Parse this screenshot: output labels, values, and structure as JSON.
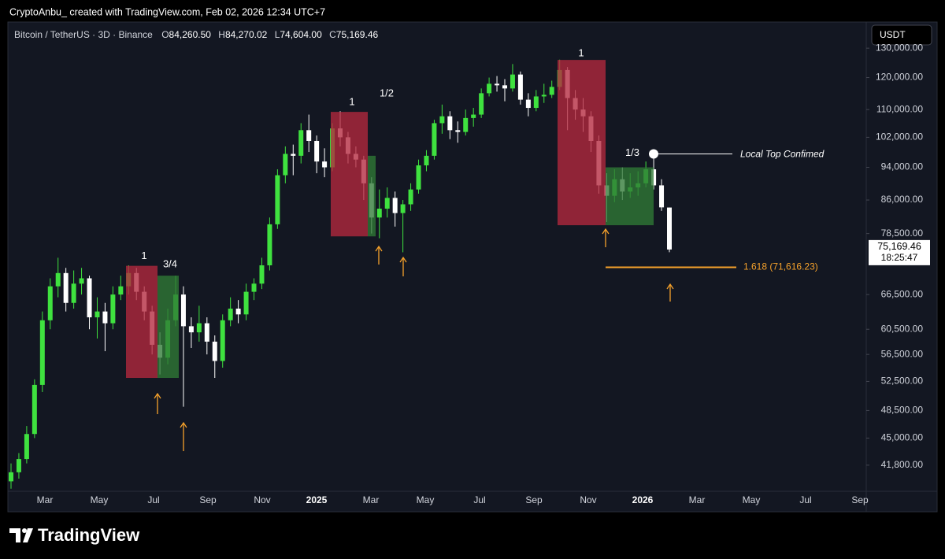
{
  "watermark": "CryptoAnbu_ created with TradingView.com, Feb 02, 2026 12:34 UTC+7",
  "currency_button": "USDT",
  "brand": "TradingView",
  "chart_data": {
    "type": "candlestick",
    "title": "Bitcoin / TetherUS · 3D · Binance",
    "ohlc_keys": [
      "O",
      "H",
      "L",
      "C"
    ],
    "ohlc_labels": [
      "84,260.50",
      "84,270.02",
      "74,604.00",
      "75,169.46"
    ],
    "countdown": "18:25:47",
    "log_scale": true,
    "grid": false,
    "up_color": "#3fe23f",
    "down_color": "#ffffff",
    "ylim": [
      39100,
      137200
    ],
    "yticks": [
      {
        "value": 41800,
        "label": "41,800.00"
      },
      {
        "value": 45000,
        "label": "45,000.00"
      },
      {
        "value": 48500,
        "label": "48,500.00"
      },
      {
        "value": 52500,
        "label": "52,500.00"
      },
      {
        "value": 56500,
        "label": "56,500.00"
      },
      {
        "value": 60500,
        "label": "60,500.00"
      },
      {
        "value": 66500,
        "label": "66,500.00"
      },
      {
        "value": 78500,
        "label": "78,500.00"
      },
      {
        "value": 86000,
        "label": "86,000.00"
      },
      {
        "value": 94000,
        "label": "94,000.00"
      },
      {
        "value": 102000,
        "label": "102,000.00"
      },
      {
        "value": 110000,
        "label": "110,000.00"
      },
      {
        "value": 120000,
        "label": "120,000.00"
      },
      {
        "value": 130000,
        "label": "130,000.00"
      }
    ],
    "xticks": [
      "Mar",
      "May",
      "Jul",
      "Sep",
      "Nov",
      "2025",
      "Mar",
      "May",
      "Jul",
      "Sep",
      "Nov",
      "2026",
      "Mar",
      "May",
      "Jul",
      "Sep"
    ],
    "open": [
      40000,
      41000,
      42500,
      45500,
      52000,
      62000,
      68000,
      70500,
      65000,
      68500,
      69500,
      62500,
      63500,
      61500,
      66500,
      68000,
      70500,
      67000,
      63500,
      58000,
      56000,
      62000,
      66500,
      61000,
      60000,
      61500,
      58500,
      55500,
      62000,
      64000,
      63000,
      67000,
      68500,
      72000,
      80500,
      92000,
      97500,
      97000,
      104000,
      101000,
      95500,
      94000,
      104500,
      102000,
      97500,
      96000,
      90000,
      82000,
      84000,
      86500,
      83000,
      85000,
      88500,
      94500,
      97000,
      106000,
      108000,
      104000,
      103500,
      107500,
      108500,
      115000,
      118000,
      117500,
      116500,
      121000,
      113000,
      110500,
      114000,
      114500,
      117000,
      122500,
      113500,
      110000,
      108000,
      101000,
      89500,
      87000,
      91000,
      88000,
      89000,
      90000,
      93500,
      89500,
      84260.5
    ],
    "high": [
      42000,
      43200,
      46500,
      52800,
      63500,
      69500,
      73500,
      71500,
      71000,
      71500,
      70000,
      66000,
      65000,
      68000,
      70000,
      72000,
      71500,
      68000,
      64500,
      60000,
      64000,
      70000,
      68000,
      62500,
      64500,
      62500,
      59500,
      63000,
      66000,
      65500,
      68500,
      69500,
      73500,
      82000,
      93500,
      99500,
      100000,
      106000,
      108500,
      102500,
      99000,
      106000,
      109500,
      103500,
      99500,
      97000,
      91500,
      88500,
      89000,
      88000,
      86000,
      90000,
      96000,
      98500,
      107000,
      111500,
      109500,
      106500,
      110000,
      110500,
      116500,
      120000,
      120500,
      119500,
      124500,
      122000,
      115000,
      116000,
      118000,
      119000,
      126000,
      123500,
      116000,
      113500,
      109500,
      102500,
      92500,
      93500,
      94000,
      92500,
      93000,
      95500,
      97500,
      91000,
      84270.02
    ],
    "low": [
      39200,
      40300,
      42000,
      45000,
      51000,
      60500,
      66000,
      63500,
      64000,
      66500,
      60500,
      59000,
      57000,
      60500,
      65500,
      66500,
      65500,
      62000,
      56500,
      53500,
      55000,
      61000,
      49000,
      57500,
      58500,
      56500,
      53000,
      54500,
      61000,
      61500,
      62000,
      65500,
      67500,
      71000,
      79500,
      90000,
      92000,
      95000,
      98000,
      92500,
      91500,
      93000,
      99500,
      95000,
      94000,
      86000,
      78500,
      77500,
      82000,
      80000,
      74600,
      83500,
      87500,
      93000,
      96000,
      103000,
      101500,
      100500,
      102500,
      105000,
      107500,
      114000,
      115500,
      112500,
      115500,
      111500,
      108000,
      109500,
      112000,
      113500,
      116000,
      104000,
      107000,
      103500,
      98000,
      87500,
      81000,
      85500,
      86000,
      86500,
      87000,
      89000,
      88500,
      83500,
      74604
    ],
    "close": [
      41000,
      42500,
      45500,
      52000,
      62000,
      68000,
      70500,
      65000,
      68500,
      69500,
      62500,
      63500,
      61500,
      66500,
      68000,
      70500,
      67000,
      63500,
      58000,
      56000,
      62000,
      66500,
      61000,
      60000,
      61500,
      58500,
      55500,
      62000,
      64000,
      63000,
      67000,
      68500,
      72000,
      80500,
      92000,
      97500,
      97000,
      104000,
      101000,
      95500,
      94000,
      104500,
      102000,
      97500,
      96000,
      90000,
      82000,
      84000,
      86500,
      83000,
      85000,
      88500,
      94500,
      97000,
      106000,
      108000,
      104000,
      103500,
      107500,
      108500,
      115000,
      118000,
      117500,
      116500,
      121000,
      113000,
      110500,
      114000,
      114500,
      117000,
      122500,
      113500,
      110000,
      108000,
      101000,
      89500,
      87000,
      91000,
      88000,
      89000,
      90000,
      93500,
      89500,
      84300,
      75169.46
    ],
    "zones": [
      {
        "label": "1",
        "color": "#b3283e",
        "top": 71900,
        "bottom": 53000
      },
      {
        "label": "3/4",
        "color": "#2f7a36",
        "top": 70000,
        "bottom": 53000
      },
      {
        "label": "1",
        "color": "#b3283e",
        "top": 109300,
        "bottom": 77900
      },
      {
        "label": "1/2",
        "color": "#2f7a36",
        "top": 97000,
        "bottom": 77900
      },
      {
        "label": "1",
        "color": "#b3283e",
        "top": 125900,
        "bottom": 80300
      },
      {
        "label": "1/3",
        "color": "#2f7a36",
        "top": 94000,
        "bottom": 80300
      }
    ],
    "fib": {
      "value": 71616.23,
      "label": "1.618 (71,616.23)",
      "color": "#f5a12b"
    },
    "annotation": {
      "text": "Local Top Confimed",
      "value": 97500
    }
  }
}
